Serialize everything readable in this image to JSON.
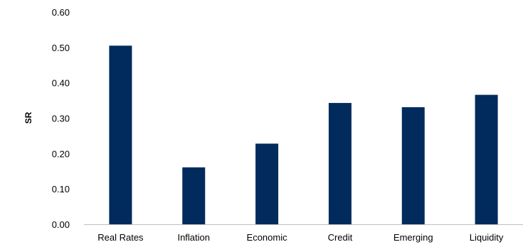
{
  "chart_data": {
    "type": "bar",
    "title": "",
    "xlabel": "",
    "ylabel": "SR",
    "categories": [
      "Real Rates",
      "Inflation",
      "Economic",
      "Credit",
      "Emerging",
      "Liquidity"
    ],
    "values": [
      0.505,
      0.161,
      0.228,
      0.343,
      0.331,
      0.366
    ],
    "ylim": [
      0,
      0.6
    ],
    "yticks": [
      "0.00",
      "0.10",
      "0.20",
      "0.30",
      "0.40",
      "0.50",
      "0.60"
    ],
    "grid": false,
    "legend": "none",
    "bar_color": "#002b5c"
  }
}
